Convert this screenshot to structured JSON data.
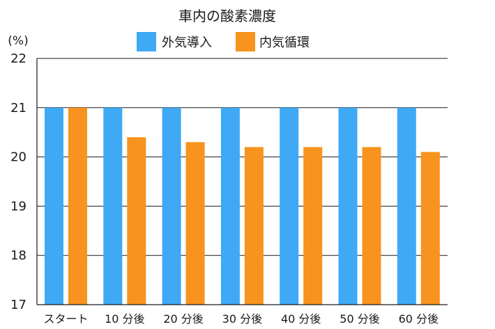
{
  "chart_data": {
    "type": "bar",
    "title": "車内の酸素濃度",
    "ylabel": "(%)",
    "xlabel": "",
    "ylim": [
      17,
      22
    ],
    "yticks": [
      17,
      18,
      19,
      20,
      21,
      22
    ],
    "ytick_labels": [
      "17",
      "18",
      "19",
      "20",
      "21",
      "22"
    ],
    "grid": true,
    "legend_position": "top-center",
    "categories": [
      "スタート",
      "10 分後",
      "20 分後",
      "30 分後",
      "40 分後",
      "50 分後",
      "60 分後"
    ],
    "series": [
      {
        "name": "外気導入",
        "color": "#3fa9f5",
        "values": [
          21.0,
          21.0,
          21.0,
          21.0,
          21.0,
          21.0,
          21.0
        ]
      },
      {
        "name": "内気循環",
        "color": "#f7931e",
        "values": [
          21.0,
          20.4,
          20.3,
          20.2,
          20.2,
          20.2,
          20.1
        ]
      }
    ]
  }
}
